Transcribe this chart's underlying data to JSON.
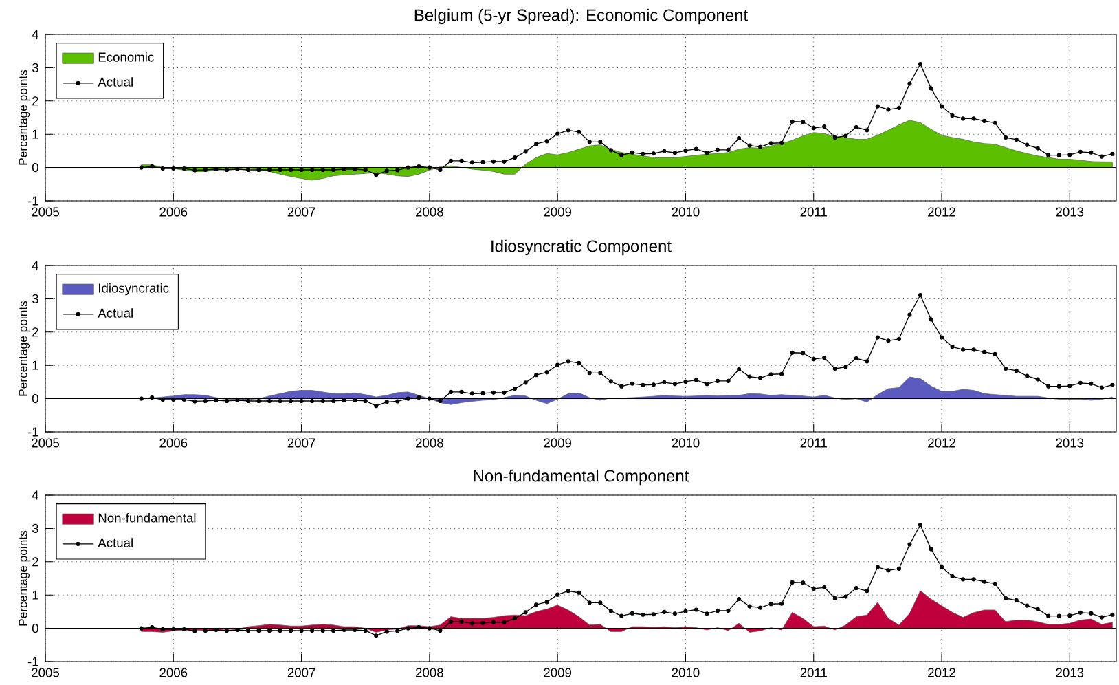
{
  "chart_data": [
    {
      "type": "area",
      "title": "Belgium (5-yr Spread): Economic Component",
      "ylabel": "Percentage points",
      "x": [
        "2005-10",
        "2005-11",
        "2005-12",
        "2006-01",
        "2006-02",
        "2006-03",
        "2006-04",
        "2006-05",
        "2006-06",
        "2006-07",
        "2006-08",
        "2006-09",
        "2006-10",
        "2006-11",
        "2006-12",
        "2007-01",
        "2007-02",
        "2007-03",
        "2007-04",
        "2007-05",
        "2007-06",
        "2007-07",
        "2007-08",
        "2007-09",
        "2007-10",
        "2007-11",
        "2007-12",
        "2008-01",
        "2008-02",
        "2008-03",
        "2008-04",
        "2008-05",
        "2008-06",
        "2008-07",
        "2008-08",
        "2008-09",
        "2008-10",
        "2008-11",
        "2008-12",
        "2009-01",
        "2009-02",
        "2009-03",
        "2009-04",
        "2009-05",
        "2009-06",
        "2009-07",
        "2009-08",
        "2009-09",
        "2009-10",
        "2009-11",
        "2009-12",
        "2010-01",
        "2010-02",
        "2010-03",
        "2010-04",
        "2010-05",
        "2010-06",
        "2010-07",
        "2010-08",
        "2010-09",
        "2010-10",
        "2010-11",
        "2010-12",
        "2011-01",
        "2011-02",
        "2011-03",
        "2011-04",
        "2011-05",
        "2011-06",
        "2011-07",
        "2011-08",
        "2011-09",
        "2011-10",
        "2011-11",
        "2011-12",
        "2012-01",
        "2012-02",
        "2012-03",
        "2012-04",
        "2012-05",
        "2012-06",
        "2012-07",
        "2012-08",
        "2012-09",
        "2012-10",
        "2012-11",
        "2012-12",
        "2013-01",
        "2013-02",
        "2013-03",
        "2013-04",
        "2013-05"
      ],
      "series": [
        {
          "name": "Economic",
          "color": "#5cbf00",
          "values": [
            0.08,
            0.08,
            0.0,
            -0.03,
            -0.08,
            -0.12,
            -0.12,
            -0.08,
            -0.05,
            -0.03,
            -0.03,
            -0.05,
            -0.12,
            -0.2,
            -0.27,
            -0.33,
            -0.38,
            -0.33,
            -0.25,
            -0.22,
            -0.2,
            -0.18,
            -0.15,
            -0.2,
            -0.25,
            -0.27,
            -0.2,
            -0.08,
            0.02,
            0.05,
            0.0,
            -0.05,
            -0.08,
            -0.12,
            -0.2,
            -0.2,
            0.1,
            0.3,
            0.42,
            0.38,
            0.45,
            0.55,
            0.65,
            0.68,
            0.55,
            0.45,
            0.4,
            0.35,
            0.3,
            0.3,
            0.3,
            0.33,
            0.37,
            0.4,
            0.42,
            0.45,
            0.55,
            0.6,
            0.58,
            0.65,
            0.72,
            0.82,
            0.95,
            1.05,
            1.02,
            0.92,
            0.9,
            0.85,
            0.85,
            0.97,
            1.12,
            1.28,
            1.42,
            1.35,
            1.15,
            0.97,
            0.9,
            0.85,
            0.77,
            0.72,
            0.7,
            0.6,
            0.5,
            0.42,
            0.35,
            0.3,
            0.25,
            0.25,
            0.22,
            0.18,
            0.17,
            0.17
          ]
        },
        {
          "name": "Actual",
          "type": "line",
          "color": "#000000",
          "marker": "circle",
          "values": [
            0.0,
            0.03,
            -0.03,
            -0.03,
            -0.03,
            -0.08,
            -0.07,
            -0.05,
            -0.07,
            -0.05,
            -0.07,
            -0.07,
            -0.07,
            -0.07,
            -0.07,
            -0.07,
            -0.07,
            -0.07,
            -0.07,
            -0.05,
            -0.05,
            -0.07,
            -0.22,
            -0.1,
            -0.08,
            0.0,
            0.03,
            0.0,
            -0.07,
            0.2,
            0.2,
            0.15,
            0.16,
            0.18,
            0.18,
            0.3,
            0.48,
            0.71,
            0.79,
            1.01,
            1.12,
            1.07,
            0.77,
            0.77,
            0.52,
            0.37,
            0.45,
            0.41,
            0.42,
            0.49,
            0.44,
            0.51,
            0.56,
            0.44,
            0.53,
            0.53,
            0.88,
            0.66,
            0.62,
            0.73,
            0.74,
            1.38,
            1.37,
            1.19,
            1.23,
            0.9,
            0.95,
            1.21,
            1.12,
            1.84,
            1.74,
            1.79,
            2.52,
            3.11,
            2.38,
            1.84,
            1.56,
            1.47,
            1.47,
            1.4,
            1.34,
            0.9,
            0.84,
            0.68,
            0.58,
            0.37,
            0.37,
            0.38,
            0.47,
            0.45,
            0.33,
            0.41
          ]
        }
      ],
      "xlim": [
        "2005-01",
        "2013-05-12"
      ],
      "xticks": [
        "2005",
        "2006",
        "2007",
        "2008",
        "2009",
        "2010",
        "2011",
        "2012",
        "2013"
      ],
      "ylim": [
        -1,
        4
      ],
      "yticks": [
        -1,
        0,
        1,
        2,
        3,
        4
      ],
      "grid": true,
      "legend": "top left"
    },
    {
      "type": "area",
      "title": "Idiosyncratic Component",
      "ylabel": "Percentage points",
      "x": [
        "2005-10",
        "2005-11",
        "2005-12",
        "2006-01",
        "2006-02",
        "2006-03",
        "2006-04",
        "2006-05",
        "2006-06",
        "2006-07",
        "2006-08",
        "2006-09",
        "2006-10",
        "2006-11",
        "2006-12",
        "2007-01",
        "2007-02",
        "2007-03",
        "2007-04",
        "2007-05",
        "2007-06",
        "2007-07",
        "2007-08",
        "2007-09",
        "2007-10",
        "2007-11",
        "2007-12",
        "2008-01",
        "2008-02",
        "2008-03",
        "2008-04",
        "2008-05",
        "2008-06",
        "2008-07",
        "2008-08",
        "2008-09",
        "2008-10",
        "2008-11",
        "2008-12",
        "2009-01",
        "2009-02",
        "2009-03",
        "2009-04",
        "2009-05",
        "2009-06",
        "2009-07",
        "2009-08",
        "2009-09",
        "2009-10",
        "2009-11",
        "2009-12",
        "2010-01",
        "2010-02",
        "2010-03",
        "2010-04",
        "2010-05",
        "2010-06",
        "2010-07",
        "2010-08",
        "2010-09",
        "2010-10",
        "2010-11",
        "2010-12",
        "2011-01",
        "2011-02",
        "2011-03",
        "2011-04",
        "2011-05",
        "2011-06",
        "2011-07",
        "2011-08",
        "2011-09",
        "2011-10",
        "2011-11",
        "2011-12",
        "2012-01",
        "2012-02",
        "2012-03",
        "2012-04",
        "2012-05",
        "2012-06",
        "2012-07",
        "2012-08",
        "2012-09",
        "2012-10",
        "2012-11",
        "2012-12",
        "2013-01",
        "2013-02",
        "2013-03",
        "2013-04",
        "2013-05"
      ],
      "series": [
        {
          "name": "Idiosyncratic",
          "color": "#5b5bbf",
          "values": [
            0.0,
            0.02,
            0.05,
            0.08,
            0.12,
            0.12,
            0.1,
            0.03,
            -0.02,
            -0.03,
            -0.03,
            0.0,
            0.08,
            0.15,
            0.22,
            0.25,
            0.25,
            0.2,
            0.15,
            0.15,
            0.17,
            0.12,
            0.05,
            0.1,
            0.18,
            0.2,
            0.1,
            0.0,
            -0.12,
            -0.18,
            -0.12,
            -0.08,
            -0.05,
            -0.03,
            0.03,
            0.1,
            0.08,
            -0.05,
            -0.15,
            -0.02,
            0.15,
            0.17,
            0.03,
            -0.05,
            0.02,
            0.02,
            0.03,
            0.05,
            0.07,
            0.1,
            0.08,
            0.07,
            0.08,
            0.1,
            0.08,
            0.1,
            0.1,
            0.15,
            0.14,
            0.1,
            0.12,
            0.1,
            0.08,
            0.05,
            0.1,
            0.02,
            -0.03,
            0.0,
            -0.1,
            0.12,
            0.3,
            0.33,
            0.65,
            0.6,
            0.38,
            0.22,
            0.22,
            0.28,
            0.25,
            0.15,
            0.12,
            0.1,
            0.07,
            0.07,
            0.07,
            0.02,
            -0.02,
            -0.02,
            -0.02,
            -0.05,
            -0.02,
            0.05
          ]
        },
        {
          "name": "Actual",
          "type": "line",
          "color": "#000000",
          "marker": "circle",
          "values": [
            0.0,
            0.03,
            -0.03,
            -0.03,
            -0.03,
            -0.08,
            -0.07,
            -0.05,
            -0.07,
            -0.05,
            -0.07,
            -0.07,
            -0.07,
            -0.07,
            -0.07,
            -0.07,
            -0.07,
            -0.07,
            -0.07,
            -0.05,
            -0.05,
            -0.07,
            -0.22,
            -0.1,
            -0.08,
            0.0,
            0.03,
            0.0,
            -0.07,
            0.2,
            0.2,
            0.15,
            0.16,
            0.18,
            0.18,
            0.3,
            0.48,
            0.71,
            0.79,
            1.01,
            1.12,
            1.07,
            0.77,
            0.77,
            0.52,
            0.37,
            0.45,
            0.41,
            0.42,
            0.49,
            0.44,
            0.51,
            0.56,
            0.44,
            0.53,
            0.53,
            0.88,
            0.66,
            0.62,
            0.73,
            0.74,
            1.38,
            1.37,
            1.19,
            1.23,
            0.9,
            0.95,
            1.21,
            1.12,
            1.84,
            1.74,
            1.79,
            2.52,
            3.11,
            2.38,
            1.84,
            1.56,
            1.47,
            1.47,
            1.4,
            1.34,
            0.9,
            0.84,
            0.68,
            0.58,
            0.37,
            0.37,
            0.38,
            0.47,
            0.45,
            0.33,
            0.41
          ]
        }
      ],
      "xlim": [
        "2005-01",
        "2013-05-12"
      ],
      "xticks": [
        "2005",
        "2006",
        "2007",
        "2008",
        "2009",
        "2010",
        "2011",
        "2012",
        "2013"
      ],
      "ylim": [
        -1,
        4
      ],
      "yticks": [
        -1,
        0,
        1,
        2,
        3,
        4
      ],
      "grid": true,
      "legend": "top left"
    },
    {
      "type": "area",
      "title": "Non-fundamental Component",
      "ylabel": "Percentage points",
      "x": [
        "2005-10",
        "2005-11",
        "2005-12",
        "2006-01",
        "2006-02",
        "2006-03",
        "2006-04",
        "2006-05",
        "2006-06",
        "2006-07",
        "2006-08",
        "2006-09",
        "2006-10",
        "2006-11",
        "2006-12",
        "2007-01",
        "2007-02",
        "2007-03",
        "2007-04",
        "2007-05",
        "2007-06",
        "2007-07",
        "2007-08",
        "2007-09",
        "2007-10",
        "2007-11",
        "2007-12",
        "2008-01",
        "2008-02",
        "2008-03",
        "2008-04",
        "2008-05",
        "2008-06",
        "2008-07",
        "2008-08",
        "2008-09",
        "2008-10",
        "2008-11",
        "2008-12",
        "2009-01",
        "2009-02",
        "2009-03",
        "2009-04",
        "2009-05",
        "2009-06",
        "2009-07",
        "2009-08",
        "2009-09",
        "2009-10",
        "2009-11",
        "2009-12",
        "2010-01",
        "2010-02",
        "2010-03",
        "2010-04",
        "2010-05",
        "2010-06",
        "2010-07",
        "2010-08",
        "2010-09",
        "2010-10",
        "2010-11",
        "2010-12",
        "2011-01",
        "2011-02",
        "2011-03",
        "2011-04",
        "2011-05",
        "2011-06",
        "2011-07",
        "2011-08",
        "2011-09",
        "2011-10",
        "2011-11",
        "2011-12",
        "2012-01",
        "2012-02",
        "2012-03",
        "2012-04",
        "2012-05",
        "2012-06",
        "2012-07",
        "2012-08",
        "2012-09",
        "2012-10",
        "2012-11",
        "2012-12",
        "2013-01",
        "2013-02",
        "2013-03",
        "2013-04",
        "2013-05"
      ],
      "series": [
        {
          "name": "Non-fundamental",
          "color": "#c0003c",
          "values": [
            -0.1,
            -0.1,
            -0.12,
            -0.08,
            -0.05,
            -0.05,
            -0.05,
            -0.05,
            -0.03,
            -0.03,
            0.05,
            0.08,
            0.12,
            0.1,
            0.07,
            0.07,
            0.1,
            0.12,
            0.1,
            0.05,
            0.05,
            0.0,
            -0.12,
            -0.05,
            -0.02,
            0.08,
            0.08,
            0.05,
            0.1,
            0.35,
            0.3,
            0.3,
            0.3,
            0.33,
            0.38,
            0.4,
            0.38,
            0.5,
            0.58,
            0.7,
            0.55,
            0.35,
            0.1,
            0.12,
            -0.1,
            -0.1,
            0.05,
            0.05,
            0.03,
            0.05,
            0.02,
            0.05,
            0.02,
            -0.05,
            0.02,
            -0.07,
            0.15,
            -0.12,
            -0.08,
            0.02,
            -0.05,
            0.48,
            0.3,
            0.05,
            0.07,
            -0.05,
            0.1,
            0.35,
            0.4,
            0.78,
            0.3,
            0.1,
            0.45,
            1.13,
            0.88,
            0.68,
            0.48,
            0.33,
            0.47,
            0.55,
            0.55,
            0.2,
            0.25,
            0.25,
            0.2,
            0.12,
            0.12,
            0.15,
            0.25,
            0.28,
            0.12,
            0.18
          ]
        },
        {
          "name": "Actual",
          "type": "line",
          "color": "#000000",
          "marker": "circle",
          "values": [
            0.0,
            0.03,
            -0.03,
            -0.03,
            -0.03,
            -0.08,
            -0.07,
            -0.05,
            -0.07,
            -0.05,
            -0.07,
            -0.07,
            -0.07,
            -0.07,
            -0.07,
            -0.07,
            -0.07,
            -0.07,
            -0.07,
            -0.05,
            -0.05,
            -0.07,
            -0.22,
            -0.1,
            -0.08,
            0.0,
            0.03,
            0.0,
            -0.07,
            0.2,
            0.2,
            0.15,
            0.16,
            0.18,
            0.18,
            0.3,
            0.48,
            0.71,
            0.79,
            1.01,
            1.12,
            1.07,
            0.77,
            0.77,
            0.52,
            0.37,
            0.45,
            0.41,
            0.42,
            0.49,
            0.44,
            0.51,
            0.56,
            0.44,
            0.53,
            0.53,
            0.88,
            0.66,
            0.62,
            0.73,
            0.74,
            1.38,
            1.37,
            1.19,
            1.23,
            0.9,
            0.95,
            1.21,
            1.12,
            1.84,
            1.74,
            1.79,
            2.52,
            3.11,
            2.38,
            1.84,
            1.56,
            1.47,
            1.47,
            1.4,
            1.34,
            0.9,
            0.84,
            0.68,
            0.58,
            0.37,
            0.37,
            0.38,
            0.47,
            0.45,
            0.33,
            0.41
          ]
        }
      ],
      "xlim": [
        "2005-01",
        "2013-05-12"
      ],
      "xticks": [
        "2005",
        "2006",
        "2007",
        "2008",
        "2009",
        "2010",
        "2011",
        "2012",
        "2013"
      ],
      "ylim": [
        -1,
        4
      ],
      "yticks": [
        -1,
        0,
        1,
        2,
        3,
        4
      ],
      "grid": true,
      "legend": "top left"
    }
  ]
}
